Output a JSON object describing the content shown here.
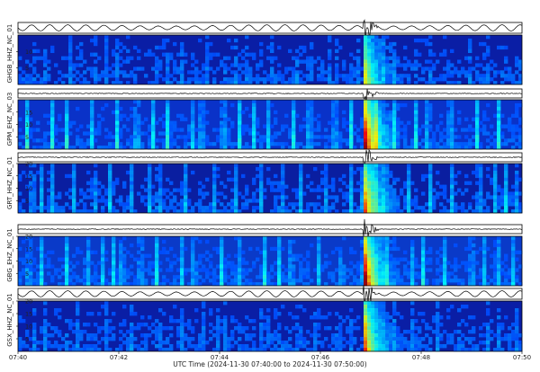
{
  "chart_data": {
    "type": "heatmap",
    "xlabel": "UTC Time (2024-11-30 07:40:00 to 2024-11-30 07:50:00)",
    "x_ticks": [
      "07:40",
      "07:42",
      "07:44",
      "07:46",
      "07:48",
      "07:50"
    ],
    "x_range_minutes": [
      0,
      10
    ],
    "event_onset_minute": 6.85,
    "colormap": "jet",
    "stations": [
      {
        "name": "GHGB_HHZ_NC_01",
        "ylim": [
          0,
          15
        ],
        "yticks": [
          5,
          10
        ],
        "background": "#0a1ea5",
        "event_strength": 0.55,
        "noise_bands": 0.15,
        "wave_style": "sinusoid"
      },
      {
        "name": "GPM_EHZ_NC_03",
        "ylim": [
          0,
          20
        ],
        "yticks": [
          5,
          10,
          15
        ],
        "background": "#0a32c8",
        "event_strength": 1.0,
        "noise_bands": 0.7,
        "wave_style": "flat"
      },
      {
        "name": "GRT_HHZ_NC_01",
        "ylim": [
          0,
          20
        ],
        "yticks": [
          5,
          10,
          15,
          20
        ],
        "background": "#0a1ea0",
        "event_strength": 0.75,
        "noise_bands": 0.45,
        "wave_style": "flat"
      },
      {
        "name": "GBG_EHZ_NC_01",
        "ylim": [
          0,
          20
        ],
        "yticks": [
          5,
          10,
          15,
          20
        ],
        "background": "#0a3ac8",
        "event_strength": 0.95,
        "noise_bands": 0.6,
        "wave_style": "flat"
      },
      {
        "name": "GSX_HHZ_NC_01",
        "ylim": [
          0,
          20
        ],
        "yticks": [
          5,
          10,
          15,
          20
        ],
        "background": "#0a1ea5",
        "event_strength": 0.7,
        "noise_bands": 0.2,
        "wave_style": "sinusoid"
      }
    ],
    "colors": {
      "waveform": "#000000",
      "axis": "#000000"
    }
  }
}
